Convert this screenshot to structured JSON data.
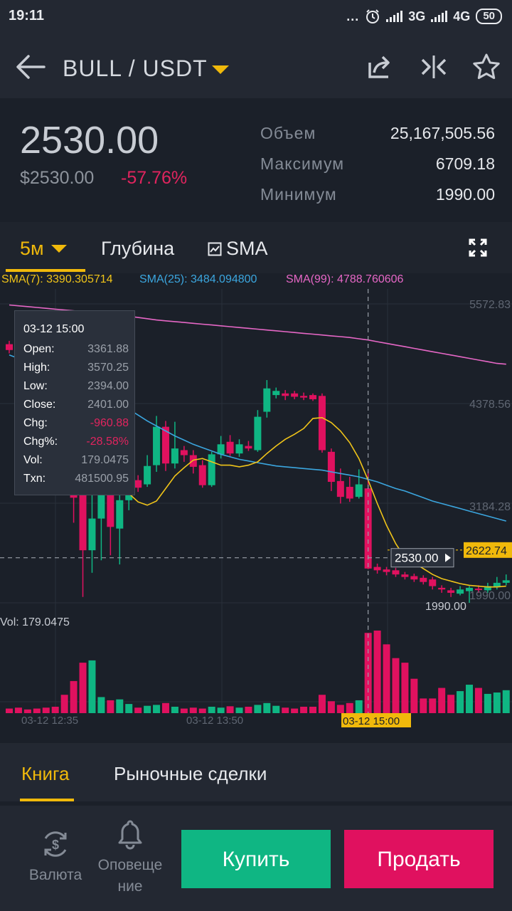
{
  "status_bar": {
    "time": "19:11",
    "dots": "...",
    "net1": "3G",
    "net2": "4G",
    "battery": "50"
  },
  "header": {
    "pair": "BULL / USDT"
  },
  "summary": {
    "price": "2530.00",
    "price_usd": "$2530.00",
    "change": "-57.76%",
    "stats": [
      {
        "label": "Объем",
        "value": "25,167,505.56"
      },
      {
        "label": "Максимум",
        "value": "6709.18"
      },
      {
        "label": "Минимум",
        "value": "1990.00"
      }
    ]
  },
  "toolbar": {
    "timeframe": "5м",
    "depth": "Глубина",
    "indicator": "SMA"
  },
  "sma_legend": {
    "sma7": "SMA(7): 3390.305714",
    "sma25": "SMA(25): 3484.094800",
    "sma99": "SMA(99): 4788.760606"
  },
  "tooltip": {
    "date": "03-12 15:00",
    "rows": [
      {
        "label": "Open:",
        "value": "3361.88"
      },
      {
        "label": "High:",
        "value": "3570.25"
      },
      {
        "label": "Low:",
        "value": "2394.00"
      },
      {
        "label": "Close:",
        "value": "2401.00"
      },
      {
        "label": "Chg:",
        "value": "-960.88"
      },
      {
        "label": "Chg%:",
        "value": "-28.58%"
      },
      {
        "label": "Vol:",
        "value": "179.0475"
      },
      {
        "label": "Txn:",
        "value": "481500.95"
      }
    ]
  },
  "colors": {
    "up": "#0fb683",
    "down": "#e0115f",
    "accent": "#f0b90b",
    "sma7": "#f0c419",
    "sma25": "#3ba6df",
    "sma99": "#e667c6"
  },
  "chart_data": {
    "type": "candlestick",
    "y_axis_labels": [
      "5572.83",
      "4378.56",
      "3184.28",
      "1990.00"
    ],
    "current_price_label": "2622.74",
    "crosshair_price_label": "2530.00",
    "low_marker_label": "1990.00",
    "volume_label": "Vol: 179.0475",
    "x_axis_labels": [
      "03-12 12:35",
      "03-12 13:50",
      "03-12 15:00"
    ],
    "ylim": [
      1990.0,
      5572.83
    ],
    "candles": [
      {
        "o": 5090,
        "c": 5020,
        "h": 5130,
        "l": 4980
      },
      {
        "o": 5030,
        "c": 4760,
        "h": 5060,
        "l": 4720
      },
      {
        "o": 4920,
        "c": 4870,
        "h": 4960,
        "l": 4840
      },
      {
        "o": 4850,
        "c": 4780,
        "h": 4890,
        "l": 4760
      },
      {
        "o": 4760,
        "c": 4680,
        "h": 4790,
        "l": 4640
      },
      {
        "o": 4700,
        "c": 4620,
        "h": 4730,
        "l": 4590
      },
      {
        "o": 4640,
        "c": 3620,
        "h": 4700,
        "l": 3500
      },
      {
        "o": 3620,
        "c": 3250,
        "h": 3700,
        "l": 2950
      },
      {
        "o": 3280,
        "c": 2620,
        "h": 3420,
        "l": 2060
      },
      {
        "o": 2620,
        "c": 3000,
        "h": 3300,
        "l": 2350
      },
      {
        "o": 3000,
        "c": 3380,
        "h": 3600,
        "l": 2500
      },
      {
        "o": 3380,
        "c": 2900,
        "h": 3420,
        "l": 2560
      },
      {
        "o": 2880,
        "c": 3220,
        "h": 3400,
        "l": 2450
      },
      {
        "o": 3220,
        "c": 3450,
        "h": 3560,
        "l": 3100
      },
      {
        "o": 3460,
        "c": 3370,
        "h": 3520,
        "l": 3320
      },
      {
        "o": 3410,
        "c": 3630,
        "h": 3760,
        "l": 3380
      },
      {
        "o": 3640,
        "c": 4100,
        "h": 4230,
        "l": 3560
      },
      {
        "o": 4100,
        "c": 3660,
        "h": 4170,
        "l": 3570
      },
      {
        "o": 3660,
        "c": 3840,
        "h": 4160,
        "l": 3600
      },
      {
        "o": 3820,
        "c": 3760,
        "h": 3870,
        "l": 3680
      },
      {
        "o": 3760,
        "c": 3620,
        "h": 3820,
        "l": 3540
      },
      {
        "o": 3640,
        "c": 3400,
        "h": 3700,
        "l": 3370
      },
      {
        "o": 3400,
        "c": 3770,
        "h": 3800,
        "l": 3380
      },
      {
        "o": 3770,
        "c": 3890,
        "h": 3990,
        "l": 3720
      },
      {
        "o": 3920,
        "c": 3780,
        "h": 4000,
        "l": 3750
      },
      {
        "o": 3780,
        "c": 3890,
        "h": 3950,
        "l": 3740
      },
      {
        "o": 3870,
        "c": 3840,
        "h": 3930,
        "l": 3810
      },
      {
        "o": 3820,
        "c": 4220,
        "h": 4300,
        "l": 3800
      },
      {
        "o": 4280,
        "c": 4560,
        "h": 4660,
        "l": 4210
      },
      {
        "o": 4480,
        "c": 4530,
        "h": 4570,
        "l": 4440
      },
      {
        "o": 4500,
        "c": 4470,
        "h": 4540,
        "l": 4420
      },
      {
        "o": 4500,
        "c": 4460,
        "h": 4530,
        "l": 4430
      },
      {
        "o": 4470,
        "c": 4450,
        "h": 4510,
        "l": 4420
      },
      {
        "o": 4480,
        "c": 4430,
        "h": 4500,
        "l": 4410
      },
      {
        "o": 4470,
        "c": 3820,
        "h": 4500,
        "l": 3790
      },
      {
        "o": 3800,
        "c": 3440,
        "h": 3840,
        "l": 3330
      },
      {
        "o": 3450,
        "c": 3260,
        "h": 3600,
        "l": 3180
      },
      {
        "o": 3380,
        "c": 3240,
        "h": 3500,
        "l": 3200
      },
      {
        "o": 3260,
        "c": 3410,
        "h": 3590,
        "l": 3240
      },
      {
        "o": 3361.88,
        "c": 2401.0,
        "h": 3570.25,
        "l": 2394.0
      },
      {
        "o": 2420,
        "c": 2380,
        "h": 2460,
        "l": 2340
      },
      {
        "o": 2390,
        "c": 2360,
        "h": 2420,
        "l": 2320
      },
      {
        "o": 2380,
        "c": 2330,
        "h": 2410,
        "l": 2300
      },
      {
        "o": 2330,
        "c": 2300,
        "h": 2360,
        "l": 2270
      },
      {
        "o": 2310,
        "c": 2270,
        "h": 2340,
        "l": 2240
      },
      {
        "o": 2290,
        "c": 2240,
        "h": 2320,
        "l": 2210
      },
      {
        "o": 2270,
        "c": 2190,
        "h": 2300,
        "l": 2150
      },
      {
        "o": 2170,
        "c": 2150,
        "h": 2200,
        "l": 2110
      },
      {
        "o": 2140,
        "c": 2110,
        "h": 2170,
        "l": 2060
      },
      {
        "o": 2100,
        "c": 2150,
        "h": 2190,
        "l": 2080
      },
      {
        "o": 2130,
        "c": 2170,
        "h": 2190,
        "l": 1990
      },
      {
        "o": 2160,
        "c": 2150,
        "h": 2200,
        "l": 2110
      },
      {
        "o": 2140,
        "c": 2190,
        "h": 2230,
        "l": 2110
      },
      {
        "o": 2180,
        "c": 2230,
        "h": 2300,
        "l": 2150
      },
      {
        "o": 2230,
        "c": 2260,
        "h": 2330,
        "l": 2200
      }
    ],
    "volumes": [
      10,
      12,
      8,
      10,
      12,
      14,
      40,
      70,
      110,
      115,
      35,
      28,
      30,
      20,
      12,
      16,
      18,
      22,
      14,
      10,
      12,
      10,
      14,
      12,
      15,
      12,
      14,
      18,
      22,
      16,
      12,
      10,
      14,
      14,
      40,
      26,
      18,
      22,
      28,
      175,
      180,
      150,
      120,
      110,
      75,
      32,
      32,
      55,
      40,
      48,
      62,
      55,
      42,
      45,
      50
    ],
    "sma7": [
      null,
      null,
      null,
      null,
      null,
      null,
      4760,
      4630,
      4450,
      4230,
      4010,
      3760,
      3560,
      3300,
      3200,
      3160,
      3210,
      3360,
      3510,
      3610,
      3700,
      3720,
      3680,
      3640,
      3640,
      3620,
      3640,
      3680,
      3780,
      3870,
      3950,
      4010,
      4080,
      4200,
      4210,
      4150,
      4050,
      3910,
      3720,
      3460,
      3180,
      2920,
      2700,
      2530,
      2470,
      2400,
      2330,
      2280,
      2250,
      2220,
      2200,
      2190,
      2180,
      2180,
      2190
    ],
    "sma25": [
      4960,
      4920,
      4880,
      4840,
      4790,
      4740,
      4700,
      4650,
      4600,
      4550,
      4500,
      4440,
      4380,
      4310,
      4240,
      4170,
      4110,
      4050,
      3990,
      3940,
      3890,
      3850,
      3810,
      3770,
      3740,
      3710,
      3690,
      3670,
      3650,
      3630,
      3620,
      3610,
      3600,
      3590,
      3580,
      3560,
      3540,
      3520,
      3500,
      3470,
      3440,
      3400,
      3360,
      3330,
      3290,
      3250,
      3210,
      3180,
      3150,
      3120,
      3090,
      3060,
      3030,
      3000,
      2970
    ],
    "sma99": [
      5560,
      5550,
      5540,
      5530,
      5520,
      5510,
      5500,
      5490,
      5480,
      5470,
      5460,
      5450,
      5440,
      5425,
      5410,
      5395,
      5380,
      5370,
      5360,
      5350,
      5340,
      5330,
      5320,
      5310,
      5300,
      5290,
      5280,
      5270,
      5260,
      5250,
      5240,
      5230,
      5220,
      5210,
      5200,
      5190,
      5180,
      5170,
      5155,
      5140,
      5120,
      5100,
      5080,
      5060,
      5040,
      5020,
      5000,
      4980,
      4960,
      4940,
      4920,
      4900,
      4880,
      4860,
      4850
    ]
  },
  "tabs": {
    "book": "Книга",
    "trades": "Рыночные сделки"
  },
  "bottom": {
    "currency": "Валюта",
    "alerts_line1": "Оповеще",
    "alerts_line2": "ние",
    "buy": "Купить",
    "sell": "Продать"
  }
}
